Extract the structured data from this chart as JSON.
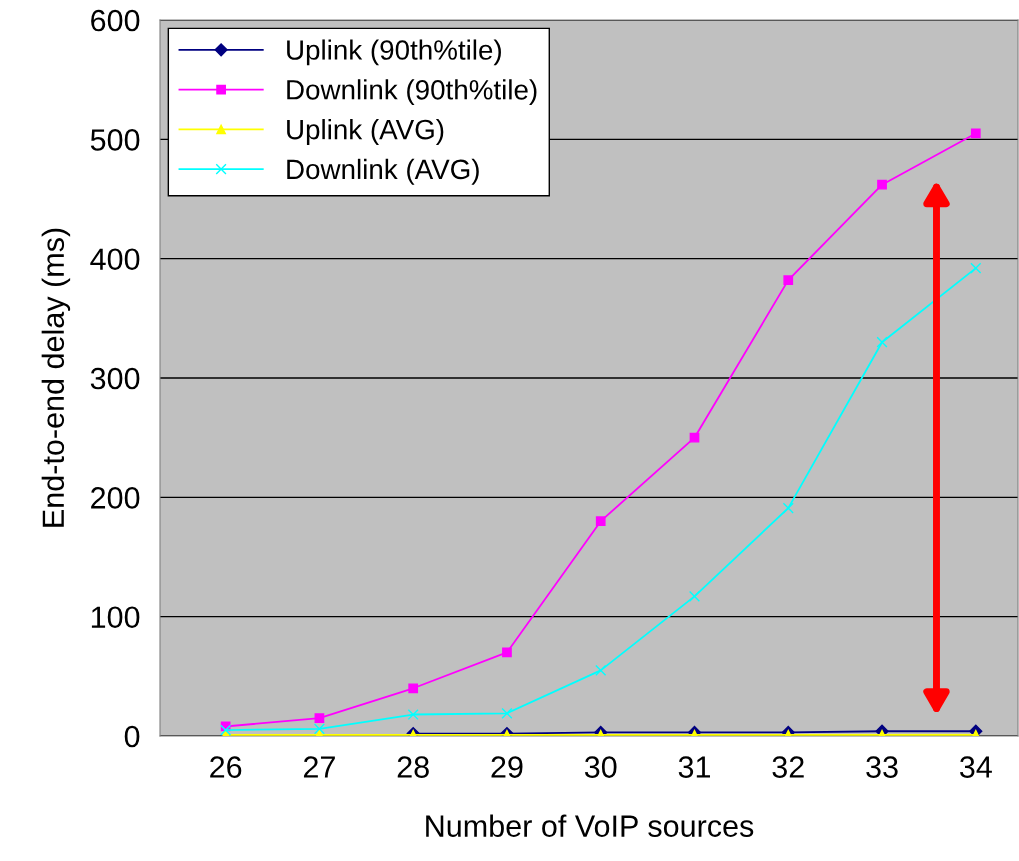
{
  "chart_data": {
    "type": "line",
    "xlabel": "Number of VoIP sources",
    "ylabel": "End-to-end delay (ms)",
    "categories": [
      "26",
      "27",
      "28",
      "29",
      "30",
      "31",
      "32",
      "33",
      "34"
    ],
    "series": [
      {
        "name": "Uplink (90th%tile)",
        "color": "#000080",
        "marker": "diamond",
        "values": [
          null,
          null,
          2,
          2,
          3,
          3,
          3,
          4,
          4
        ]
      },
      {
        "name": "Downlink (90th%tile)",
        "color": "#ff00ff",
        "marker": "square",
        "values": [
          8,
          15,
          40,
          70,
          180,
          250,
          382,
          462,
          505
        ]
      },
      {
        "name": "Uplink (AVG)",
        "color": "#ffff00",
        "marker": "triangle",
        "values": [
          1,
          1,
          1,
          1,
          1,
          1,
          1,
          1,
          1
        ]
      },
      {
        "name": "Downlink (AVG)",
        "color": "#00ffff",
        "marker": "cross",
        "values": [
          5,
          6,
          18,
          19,
          55,
          117,
          191,
          330,
          392
        ]
      }
    ],
    "ylim": [
      0,
      600
    ],
    "yticks": [
      0,
      100,
      200,
      300,
      400,
      500,
      600
    ],
    "grid": "y",
    "legend": "top left"
  }
}
